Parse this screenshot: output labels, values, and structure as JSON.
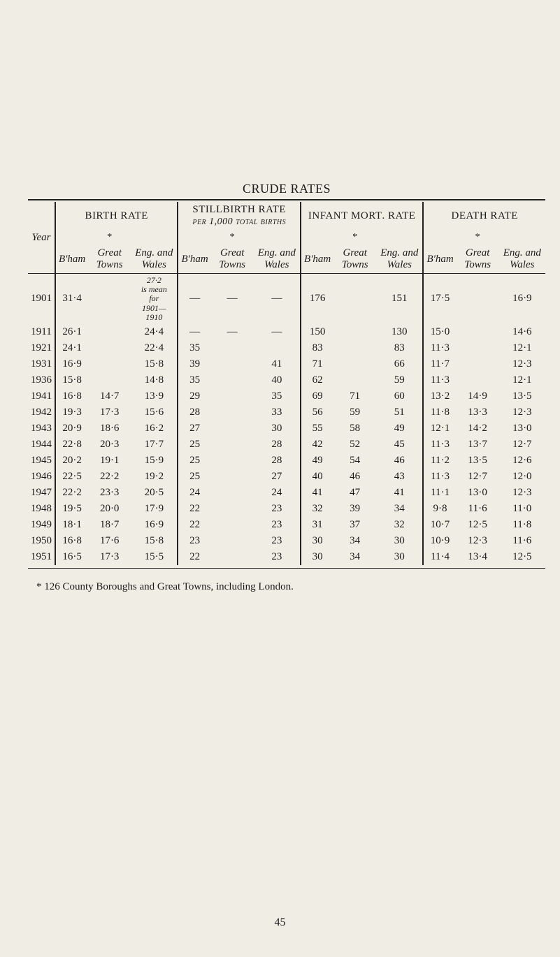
{
  "title": "CRUDE RATES",
  "groups": [
    {
      "name_html": "Birth Rate",
      "per_html": ""
    },
    {
      "name_html": "Stillbirth Rate",
      "per_html": "per 1,000 total births"
    },
    {
      "name_html": "Infant Mort. Rate",
      "per_html": ""
    },
    {
      "name_html": "Death Rate",
      "per_html": ""
    }
  ],
  "col_year": "Year",
  "sub_cols": {
    "bham": "B'ham",
    "great_star": "*",
    "great": "Great Towns",
    "eng": "Eng. and Wales"
  },
  "note_1901": "27·2 is mean for 1901— 1910",
  "rows": [
    {
      "year": "1901",
      "birth": {
        "bham": "31·4",
        "gt": "",
        "ew": ""
      },
      "still": {
        "bham": "—",
        "gt": "—",
        "ew": "—"
      },
      "infant": {
        "bham": "176",
        "gt": "",
        "ew": "151"
      },
      "death": {
        "bham": "17·5",
        "gt": "",
        "ew": "16·9"
      },
      "note": true
    },
    {
      "year": "1911",
      "birth": {
        "bham": "26·1",
        "gt": "",
        "ew": "24·4"
      },
      "still": {
        "bham": "—",
        "gt": "—",
        "ew": "—"
      },
      "infant": {
        "bham": "150",
        "gt": "",
        "ew": "130"
      },
      "death": {
        "bham": "15·0",
        "gt": "",
        "ew": "14·6"
      }
    },
    {
      "year": "1921",
      "birth": {
        "bham": "24·1",
        "gt": "",
        "ew": "22·4"
      },
      "still": {
        "bham": "35",
        "gt": "",
        "ew": ""
      },
      "infant": {
        "bham": "83",
        "gt": "",
        "ew": "83"
      },
      "death": {
        "bham": "11·3",
        "gt": "",
        "ew": "12·1"
      }
    },
    {
      "year": "1931",
      "birth": {
        "bham": "16·9",
        "gt": "",
        "ew": "15·8"
      },
      "still": {
        "bham": "39",
        "gt": "",
        "ew": "41"
      },
      "infant": {
        "bham": "71",
        "gt": "",
        "ew": "66"
      },
      "death": {
        "bham": "11·7",
        "gt": "",
        "ew": "12·3"
      }
    },
    {
      "year": "1936",
      "birth": {
        "bham": "15·8",
        "gt": "",
        "ew": "14·8"
      },
      "still": {
        "bham": "35",
        "gt": "",
        "ew": "40"
      },
      "infant": {
        "bham": "62",
        "gt": "",
        "ew": "59"
      },
      "death": {
        "bham": "11·3",
        "gt": "",
        "ew": "12·1"
      }
    },
    {
      "year": "1941",
      "birth": {
        "bham": "16·8",
        "gt": "14·7",
        "ew": "13·9"
      },
      "still": {
        "bham": "29",
        "gt": "",
        "ew": "35"
      },
      "infant": {
        "bham": "69",
        "gt": "71",
        "ew": "60"
      },
      "death": {
        "bham": "13·2",
        "gt": "14·9",
        "ew": "13·5"
      }
    },
    {
      "year": "1942",
      "birth": {
        "bham": "19·3",
        "gt": "17·3",
        "ew": "15·6"
      },
      "still": {
        "bham": "28",
        "gt": "",
        "ew": "33"
      },
      "infant": {
        "bham": "56",
        "gt": "59",
        "ew": "51"
      },
      "death": {
        "bham": "11·8",
        "gt": "13·3",
        "ew": "12·3"
      }
    },
    {
      "year": "1943",
      "birth": {
        "bham": "20·9",
        "gt": "18·6",
        "ew": "16·2"
      },
      "still": {
        "bham": "27",
        "gt": "",
        "ew": "30"
      },
      "infant": {
        "bham": "55",
        "gt": "58",
        "ew": "49"
      },
      "death": {
        "bham": "12·1",
        "gt": "14·2",
        "ew": "13·0"
      }
    },
    {
      "year": "1944",
      "birth": {
        "bham": "22·8",
        "gt": "20·3",
        "ew": "17·7"
      },
      "still": {
        "bham": "25",
        "gt": "",
        "ew": "28"
      },
      "infant": {
        "bham": "42",
        "gt": "52",
        "ew": "45"
      },
      "death": {
        "bham": "11·3",
        "gt": "13·7",
        "ew": "12·7"
      }
    },
    {
      "year": "1945",
      "birth": {
        "bham": "20·2",
        "gt": "19·1",
        "ew": "15·9"
      },
      "still": {
        "bham": "25",
        "gt": "",
        "ew": "28"
      },
      "infant": {
        "bham": "49",
        "gt": "54",
        "ew": "46"
      },
      "death": {
        "bham": "11·2",
        "gt": "13·5",
        "ew": "12·6"
      }
    },
    {
      "year": "1946",
      "birth": {
        "bham": "22·5",
        "gt": "22·2",
        "ew": "19·2"
      },
      "still": {
        "bham": "25",
        "gt": "",
        "ew": "27"
      },
      "infant": {
        "bham": "40",
        "gt": "46",
        "ew": "43"
      },
      "death": {
        "bham": "11·3",
        "gt": "12·7",
        "ew": "12·0"
      }
    },
    {
      "year": "1947",
      "birth": {
        "bham": "22·2",
        "gt": "23·3",
        "ew": "20·5"
      },
      "still": {
        "bham": "24",
        "gt": "",
        "ew": "24"
      },
      "infant": {
        "bham": "41",
        "gt": "47",
        "ew": "41"
      },
      "death": {
        "bham": "11·1",
        "gt": "13·0",
        "ew": "12·3"
      }
    },
    {
      "year": "1948",
      "birth": {
        "bham": "19·5",
        "gt": "20·0",
        "ew": "17·9"
      },
      "still": {
        "bham": "22",
        "gt": "",
        "ew": "23"
      },
      "infant": {
        "bham": "32",
        "gt": "39",
        "ew": "34"
      },
      "death": {
        "bham": "9·8",
        "gt": "11·6",
        "ew": "11·0"
      }
    },
    {
      "year": "1949",
      "birth": {
        "bham": "18·1",
        "gt": "18·7",
        "ew": "16·9"
      },
      "still": {
        "bham": "22",
        "gt": "",
        "ew": "23"
      },
      "infant": {
        "bham": "31",
        "gt": "37",
        "ew": "32"
      },
      "death": {
        "bham": "10·7",
        "gt": "12·5",
        "ew": "11·8"
      }
    },
    {
      "year": "1950",
      "birth": {
        "bham": "16·8",
        "gt": "17·6",
        "ew": "15·8"
      },
      "still": {
        "bham": "23",
        "gt": "",
        "ew": "23"
      },
      "infant": {
        "bham": "30",
        "gt": "34",
        "ew": "30"
      },
      "death": {
        "bham": "10·9",
        "gt": "12·3",
        "ew": "11·6"
      }
    },
    {
      "year": "1951",
      "birth": {
        "bham": "16·5",
        "gt": "17·3",
        "ew": "15·5"
      },
      "still": {
        "bham": "22",
        "gt": "",
        "ew": "23"
      },
      "infant": {
        "bham": "30",
        "gt": "34",
        "ew": "30"
      },
      "death": {
        "bham": "11·4",
        "gt": "13·4",
        "ew": "12·5"
      }
    }
  ],
  "footnote": "* 126 County Boroughs and Great Towns, including London.",
  "page_number": "45"
}
